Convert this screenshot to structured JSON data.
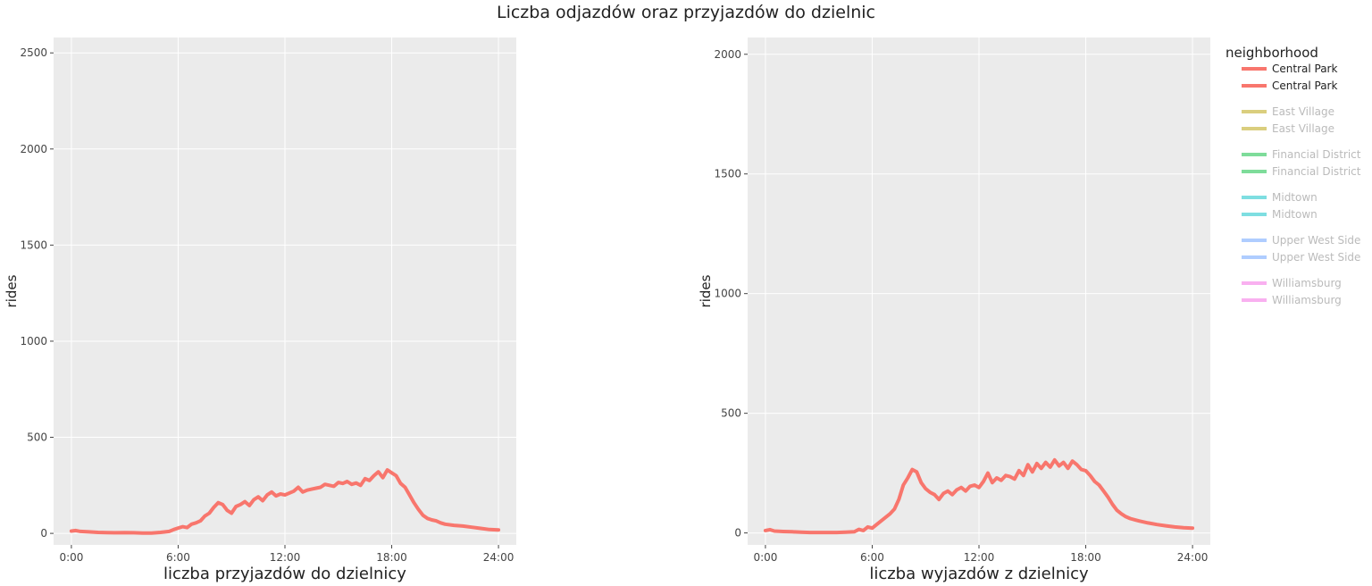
{
  "title": "Liczba odjazdów oraz przyjazdów do dzielnic",
  "legend": {
    "title": "neighborhood",
    "items": [
      {
        "label": "Central Park",
        "color": "#F8766D",
        "active": true
      },
      {
        "label": "Central Park",
        "color": "#F8766D",
        "active": true
      },
      {
        "label": "East Village",
        "color": "#B79F00",
        "active": false
      },
      {
        "label": "East Village",
        "color": "#B79F00",
        "active": false
      },
      {
        "label": "Financial District",
        "color": "#00BA38",
        "active": false
      },
      {
        "label": "Financial District",
        "color": "#00BA38",
        "active": false
      },
      {
        "label": "Midtown",
        "color": "#00BFC4",
        "active": false
      },
      {
        "label": "Midtown",
        "color": "#00BFC4",
        "active": false
      },
      {
        "label": "Upper West Side",
        "color": "#619CFF",
        "active": false
      },
      {
        "label": "Upper West Side",
        "color": "#619CFF",
        "active": false
      },
      {
        "label": "Williamsburg",
        "color": "#F564E3",
        "active": false
      },
      {
        "label": "Williamsburg",
        "color": "#F564E3",
        "active": false
      }
    ]
  },
  "chart_data": [
    {
      "type": "line",
      "xlabel": "liczba przyjazdów do dzielnicy",
      "ylabel": "rides",
      "xlim": [
        -1,
        25
      ],
      "ylim": [
        -60,
        2580
      ],
      "xticks": [
        0,
        6,
        12,
        18,
        24
      ],
      "xtick_labels": [
        "0:00",
        "6:00",
        "12:00",
        "18:00",
        "24:00"
      ],
      "yticks": [
        0,
        500,
        1000,
        1500,
        2000,
        2500
      ],
      "grid": true,
      "series": [
        {
          "name": "Central Park",
          "color": "#F8766D",
          "x": [
            0,
            0.25,
            0.5,
            1,
            1.5,
            2,
            2.5,
            3,
            3.5,
            4,
            4.5,
            5,
            5.5,
            5.75,
            6,
            6.25,
            6.5,
            6.75,
            7,
            7.25,
            7.5,
            7.75,
            8,
            8.25,
            8.5,
            8.75,
            9,
            9.25,
            9.5,
            9.75,
            10,
            10.25,
            10.5,
            10.75,
            11,
            11.25,
            11.5,
            11.75,
            12,
            12.25,
            12.5,
            12.75,
            13,
            13.25,
            13.5,
            13.75,
            14,
            14.25,
            14.5,
            14.75,
            15,
            15.25,
            15.5,
            15.75,
            16,
            16.25,
            16.5,
            16.75,
            17,
            17.25,
            17.5,
            17.75,
            18,
            18.25,
            18.5,
            18.75,
            19,
            19.25,
            19.5,
            19.75,
            20,
            20.25,
            20.5,
            20.75,
            21,
            21.5,
            22,
            22.5,
            23,
            23.5,
            24
          ],
          "y": [
            12,
            15,
            10,
            8,
            5,
            4,
            3,
            4,
            3,
            2,
            2,
            5,
            10,
            20,
            28,
            35,
            30,
            48,
            55,
            65,
            90,
            105,
            135,
            160,
            150,
            120,
            105,
            140,
            150,
            165,
            145,
            175,
            190,
            170,
            200,
            215,
            195,
            205,
            200,
            210,
            220,
            240,
            215,
            225,
            230,
            235,
            240,
            255,
            250,
            245,
            265,
            260,
            270,
            255,
            262,
            250,
            285,
            275,
            300,
            320,
            290,
            330,
            315,
            300,
            260,
            240,
            200,
            160,
            125,
            95,
            78,
            70,
            65,
            55,
            48,
            42,
            38,
            32,
            26,
            20,
            18
          ]
        }
      ]
    },
    {
      "type": "line",
      "xlabel": "liczba wyjazdów z dzielnicy",
      "ylabel": "rides",
      "xlim": [
        -1,
        25
      ],
      "ylim": [
        -50,
        2070
      ],
      "xticks": [
        0,
        6,
        12,
        18,
        24
      ],
      "xtick_labels": [
        "0:00",
        "6:00",
        "12:00",
        "18:00",
        "24:00"
      ],
      "yticks": [
        0,
        500,
        1000,
        1500,
        2000
      ],
      "grid": true,
      "series": [
        {
          "name": "Central Park",
          "color": "#F8766D",
          "x": [
            0,
            0.25,
            0.5,
            1,
            1.5,
            2,
            2.5,
            3,
            3.5,
            4,
            4.5,
            5,
            5.25,
            5.5,
            5.75,
            6,
            6.25,
            6.5,
            6.75,
            7,
            7.25,
            7.5,
            7.75,
            8,
            8.25,
            8.5,
            8.75,
            9,
            9.25,
            9.5,
            9.75,
            10,
            10.25,
            10.5,
            10.75,
            11,
            11.25,
            11.5,
            11.75,
            12,
            12.25,
            12.5,
            12.75,
            13,
            13.25,
            13.5,
            13.75,
            14,
            14.25,
            14.5,
            14.75,
            15,
            15.25,
            15.5,
            15.75,
            16,
            16.25,
            16.5,
            16.75,
            17,
            17.25,
            17.5,
            17.75,
            18,
            18.25,
            18.5,
            18.75,
            19,
            19.25,
            19.5,
            19.75,
            20,
            20.25,
            20.5,
            21,
            21.5,
            22,
            22.5,
            23,
            23.5,
            24
          ],
          "y": [
            10,
            14,
            8,
            6,
            5,
            3,
            2,
            2,
            2,
            2,
            3,
            5,
            15,
            10,
            25,
            20,
            35,
            50,
            65,
            80,
            100,
            140,
            200,
            230,
            265,
            255,
            210,
            185,
            170,
            160,
            140,
            165,
            175,
            160,
            180,
            190,
            175,
            195,
            200,
            190,
            215,
            250,
            210,
            230,
            220,
            240,
            235,
            225,
            260,
            240,
            285,
            255,
            290,
            270,
            295,
            275,
            305,
            280,
            295,
            270,
            300,
            285,
            265,
            260,
            240,
            215,
            200,
            175,
            150,
            120,
            95,
            80,
            68,
            60,
            50,
            42,
            35,
            30,
            25,
            22,
            20
          ]
        }
      ]
    }
  ]
}
